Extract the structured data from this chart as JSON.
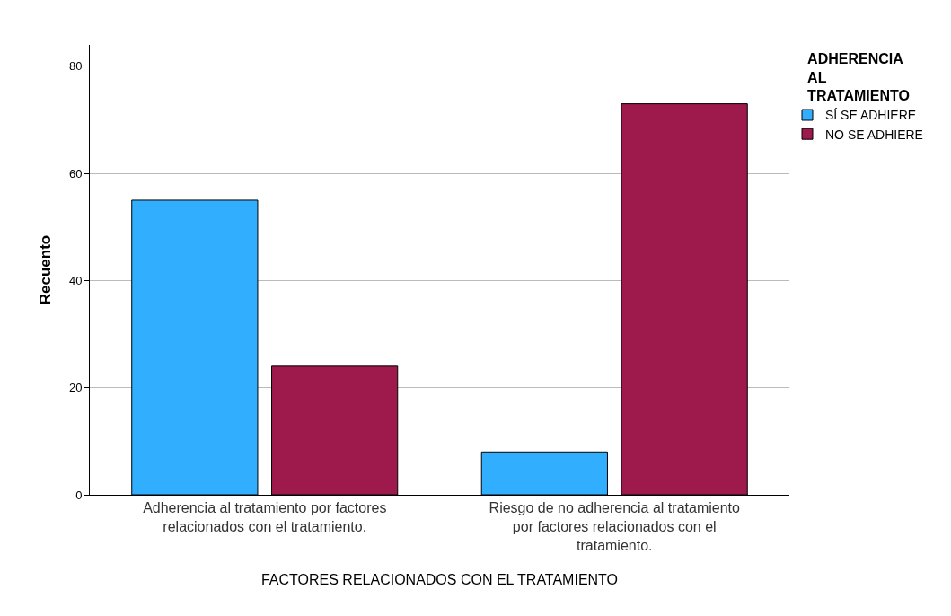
{
  "chart_data": {
    "type": "bar",
    "xlabel": "FACTORES RELACIONADOS CON EL TRATAMIENTO",
    "ylabel": "Recuento",
    "legend_title": "ADHERENCIA AL TRATAMIENTO",
    "categories": [
      "Adherencia al tratamiento por factores relacionados con el tratamiento.",
      "Riesgo de no adherencia al tratamiento por factores relacionados con el tratamiento."
    ],
    "series": [
      {
        "name": "SÍ SE ADHIERE",
        "color": "#31aefe",
        "values": [
          55,
          8
        ]
      },
      {
        "name": "NO SE ADHIERE",
        "color": "#9e1a4c",
        "values": [
          24,
          73
        ]
      }
    ],
    "ylim": [
      0,
      84
    ],
    "yticks": [
      0,
      20,
      40,
      60,
      80
    ],
    "grid": "y",
    "legend": "top right"
  }
}
